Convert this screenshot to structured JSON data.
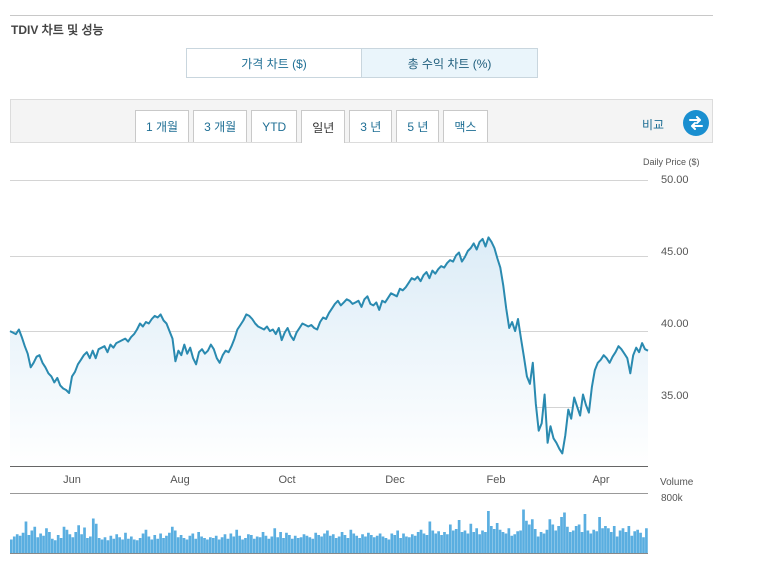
{
  "header": {
    "title": "TDIV 차트 및 성능"
  },
  "chart_type_toggle": [
    {
      "label": "가격 차트 ($)",
      "active": false
    },
    {
      "label": "총 수익 차트 (%)",
      "active": true
    }
  ],
  "range_tabs": [
    {
      "label": "1 개월",
      "active": false
    },
    {
      "label": "3 개월",
      "active": false
    },
    {
      "label": "YTD",
      "active": false
    },
    {
      "label": "일년",
      "active": true
    },
    {
      "label": "3 년",
      "active": false
    },
    {
      "label": "5 년",
      "active": false
    },
    {
      "label": "맥스",
      "active": false
    }
  ],
  "compare": {
    "label": "비교",
    "icon": "swap-arrows-icon"
  },
  "colors": {
    "line": "#2a8ab0",
    "fill_top": "#dcecf7",
    "volume": "#5aaee0",
    "compare_button": "#1a8fd0",
    "accent_text": "#1e6e94"
  },
  "chart_data": {
    "type": "area",
    "ylabel": "Daily Price ($)",
    "ylim": [
      31,
      50
    ],
    "yticks": [
      "50.00",
      "45.00",
      "40.00",
      "35.00"
    ],
    "x_ticks": [
      "Jun",
      "Aug",
      "Oct",
      "Dec",
      "Feb",
      "Apr"
    ],
    "grid": true,
    "series": [
      {
        "values": [
          40.0,
          39.9,
          39.8,
          40.1,
          39.6,
          39.0,
          38.5,
          37.6,
          37.9,
          38.3,
          38.4,
          37.9,
          37.6,
          37.2,
          37.0,
          36.6,
          36.9,
          36.4,
          36.2,
          36.1,
          35.9,
          37.0,
          37.3,
          37.8,
          38.1,
          38.4,
          38.6,
          38.2,
          38.7,
          38.2,
          38.8,
          38.9,
          39.0,
          38.6,
          39.1,
          38.9,
          39.2,
          39.3,
          39.4,
          39.5,
          39.3,
          39.6,
          39.8,
          40.1,
          40.5,
          40.3,
          40.6,
          40.5,
          40.8,
          41.0,
          40.9,
          41.1,
          40.7,
          40.5,
          40.0,
          39.5,
          38.0,
          38.7,
          38.4,
          39.1,
          38.5,
          38.9,
          38.2,
          37.8,
          38.6,
          38.8,
          38.5,
          38.7,
          39.1,
          38.8,
          38.2,
          37.9,
          38.4,
          38.7,
          38.6,
          39.0,
          39.5,
          40.1,
          40.4,
          40.7,
          41.1,
          41.0,
          40.8,
          40.5,
          40.3,
          40.2,
          40.1,
          40.3,
          40.0,
          40.1,
          39.8,
          40.2,
          39.4,
          39.9,
          40.2,
          39.7,
          39.4,
          39.9,
          40.2,
          40.5,
          40.4,
          40.3,
          40.4,
          40.2,
          40.1,
          40.6,
          40.9,
          40.8,
          41.2,
          41.5,
          41.8,
          42.0,
          41.7,
          41.9,
          42.1,
          42.0,
          41.8,
          41.9,
          42.0,
          41.6,
          42.1,
          42.3,
          41.8,
          41.7,
          41.9,
          41.4,
          42.0,
          41.9,
          42.2,
          42.5,
          42.4,
          42.3,
          42.8,
          42.7,
          42.9,
          43.2,
          43.5,
          43.4,
          43.6,
          43.3,
          43.7,
          43.9,
          43.5,
          44.0,
          43.8,
          44.1,
          44.3,
          44.2,
          44.5,
          44.7,
          44.6,
          45.0,
          45.2,
          44.6,
          44.9,
          45.3,
          45.5,
          45.8,
          45.4,
          45.9,
          46.1,
          45.6,
          46.2,
          45.9,
          45.5,
          44.8,
          44.2,
          43.0,
          41.5,
          40.2,
          40.6,
          40.0,
          40.8,
          39.5,
          38.3,
          37.0,
          36.5,
          37.9,
          35.2,
          33.4,
          33.9,
          35.8,
          32.6,
          33.7,
          32.9,
          32.6,
          32.2,
          31.9,
          33.1,
          34.8,
          34.2,
          35.6,
          35.0,
          34.4,
          35.8,
          35.1,
          34.6,
          36.3,
          37.4,
          37.9,
          38.1,
          38.4,
          38.2,
          37.9,
          38.3,
          38.6,
          39.0,
          38.8,
          38.5,
          38.2,
          37.2,
          38.4,
          38.9,
          38.6,
          39.2,
          38.8,
          38.7
        ]
      }
    ],
    "volume": {
      "label": "Volume",
      "max_label": "800k",
      "ylim": [
        0,
        800000
      ],
      "values": [
        180000,
        220000,
        250000,
        230000,
        270000,
        420000,
        240000,
        300000,
        350000,
        210000,
        260000,
        230000,
        330000,
        280000,
        190000,
        170000,
        240000,
        200000,
        350000,
        310000,
        250000,
        210000,
        280000,
        370000,
        250000,
        340000,
        200000,
        220000,
        460000,
        390000,
        200000,
        180000,
        210000,
        170000,
        230000,
        190000,
        250000,
        210000,
        180000,
        270000,
        190000,
        220000,
        180000,
        170000,
        200000,
        260000,
        310000,
        220000,
        180000,
        240000,
        190000,
        260000,
        200000,
        230000,
        270000,
        350000,
        300000,
        210000,
        240000,
        200000,
        180000,
        230000,
        260000,
        190000,
        280000,
        220000,
        200000,
        180000,
        210000,
        200000,
        230000,
        180000,
        210000,
        250000,
        190000,
        260000,
        220000,
        310000,
        230000,
        180000,
        200000,
        250000,
        240000,
        190000,
        220000,
        210000,
        280000,
        230000,
        190000,
        220000,
        330000,
        210000,
        280000,
        200000,
        270000,
        240000,
        190000,
        230000,
        200000,
        210000,
        250000,
        230000,
        210000,
        190000,
        270000,
        240000,
        220000,
        260000,
        300000,
        230000,
        250000,
        200000,
        220000,
        280000,
        240000,
        200000,
        310000,
        260000,
        230000,
        200000,
        250000,
        220000,
        270000,
        240000,
        210000,
        230000,
        260000,
        220000,
        200000,
        180000,
        260000,
        240000,
        300000,
        200000,
        260000,
        220000,
        210000,
        250000,
        230000,
        280000,
        310000,
        260000,
        240000,
        420000,
        300000,
        260000,
        290000,
        240000,
        280000,
        250000,
        380000,
        300000,
        320000,
        440000,
        280000,
        300000,
        260000,
        390000,
        280000,
        330000,
        250000,
        300000,
        280000,
        560000,
        360000,
        320000,
        400000,
        310000,
        280000,
        260000,
        330000,
        230000,
        250000,
        290000,
        300000,
        580000,
        430000,
        380000,
        450000,
        320000,
        220000,
        280000,
        260000,
        310000,
        450000,
        380000,
        300000,
        360000,
        480000,
        540000,
        350000,
        280000,
        300000,
        360000,
        380000,
        280000,
        520000,
        300000,
        260000,
        310000,
        290000,
        480000,
        330000,
        360000,
        330000,
        280000,
        360000,
        220000,
        300000,
        330000,
        280000,
        360000,
        230000,
        290000,
        310000,
        270000,
        210000,
        330000
      ]
    }
  }
}
